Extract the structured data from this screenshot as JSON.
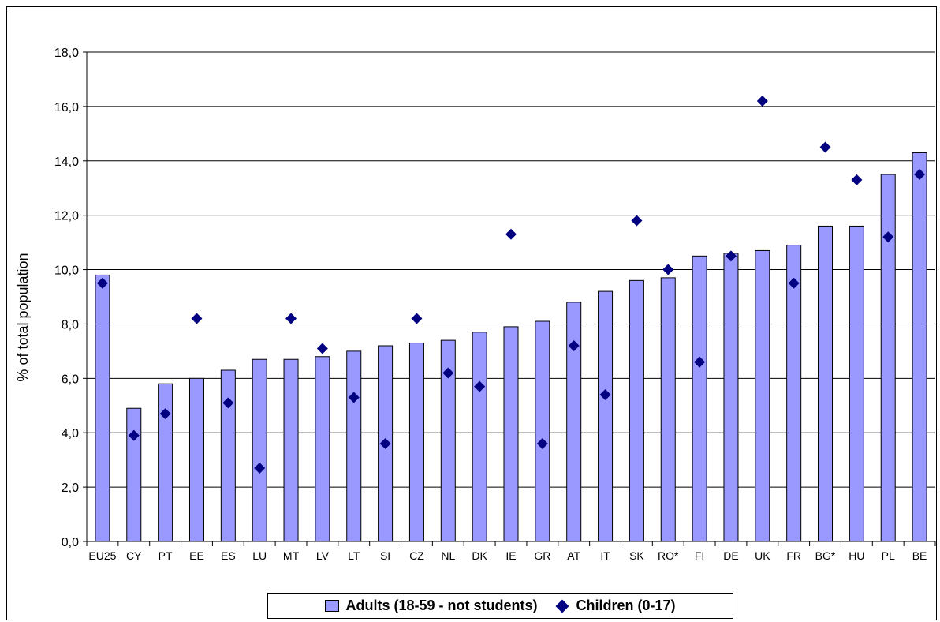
{
  "chart_data": {
    "type": "bar",
    "title": "",
    "xlabel": "",
    "ylabel": "% of total population",
    "ylim": [
      0,
      18
    ],
    "ytick_step": 2,
    "ytick_labels": [
      "0,0",
      "2,0",
      "4,0",
      "6,0",
      "8,0",
      "10,0",
      "12,0",
      "14,0",
      "16,0",
      "18,0"
    ],
    "grid": true,
    "legend_position": "bottom",
    "categories": [
      "EU25",
      "CY",
      "PT",
      "EE",
      "ES",
      "LU",
      "MT",
      "LV",
      "LT",
      "SI",
      "CZ",
      "NL",
      "DK",
      "IE",
      "GR",
      "AT",
      "IT",
      "SK",
      "RO*",
      "FI",
      "DE",
      "UK",
      "FR",
      "BG*",
      "HU",
      "PL",
      "BE"
    ],
    "series": [
      {
        "name": "Adults (18-59 - not students)",
        "type": "bar",
        "color": "#9999ff",
        "values": [
          9.8,
          4.9,
          5.8,
          6.0,
          6.3,
          6.7,
          6.7,
          6.8,
          7.0,
          7.2,
          7.3,
          7.4,
          7.7,
          7.9,
          8.1,
          8.8,
          9.2,
          9.6,
          9.7,
          10.5,
          10.6,
          10.7,
          10.9,
          11.6,
          11.6,
          13.5,
          14.3
        ]
      },
      {
        "name": "Children (0-17)",
        "type": "scatter",
        "marker": "diamond",
        "color": "#000080",
        "values": [
          9.5,
          3.9,
          4.7,
          8.2,
          5.1,
          2.7,
          8.2,
          7.1,
          5.3,
          3.6,
          8.2,
          6.2,
          5.7,
          11.3,
          3.6,
          7.2,
          5.4,
          11.8,
          10.0,
          6.6,
          10.5,
          16.2,
          9.5,
          14.5,
          13.3,
          11.2,
          13.5
        ]
      }
    ]
  }
}
